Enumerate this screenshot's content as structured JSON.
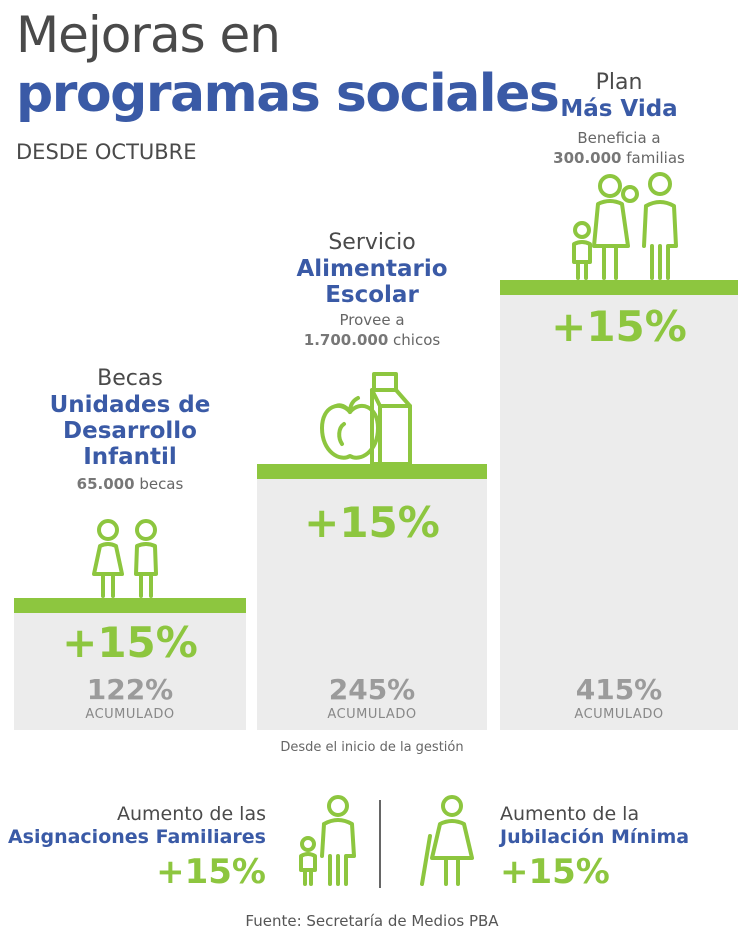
{
  "title": {
    "line1": "Mejoras en",
    "line2": "programas sociales",
    "since": "DESDE OCTUBRE"
  },
  "chart_data": {
    "type": "bar",
    "title": "Mejoras en programas sociales",
    "subtitle": "DESDE OCTUBRE",
    "categories": [
      "Becas Unidades de Desarrollo Infantil",
      "Servicio Alimentario Escolar",
      "Plan Más Vida"
    ],
    "series": [
      {
        "name": "",
        "values": [
          15,
          15,
          15
        ]
      },
      {
        "name": "ACUMULADO",
        "values": [
          122,
          245,
          415
        ]
      }
    ],
    "value_unit": "%",
    "footnote": "Desde el inicio de la gestión"
  },
  "programs": [
    {
      "pre": "Becas",
      "name_lines": [
        "Unidades de",
        "Desarrollo",
        "Infantil"
      ],
      "note_bold": "65.000",
      "note_text": " becas",
      "note_pre": "",
      "increase": "+15%",
      "accum": "122%",
      "accum_label": "ACUMULADO"
    },
    {
      "pre": "Servicio",
      "name_lines": [
        "Alimentario",
        "Escolar"
      ],
      "note_pre": "Provee a",
      "note_bold": "1.700.000",
      "note_text": " chicos",
      "increase": "+15%",
      "accum": "245%",
      "accum_label": "ACUMULADO"
    },
    {
      "pre": "Plan",
      "name_lines": [
        "Más Vida"
      ],
      "note_pre": "Beneficia a",
      "note_bold": "300.000",
      "note_text": " familias",
      "increase": "+15%",
      "accum": "415%",
      "accum_label": "ACUMULADO"
    }
  ],
  "footnote": "Desde el inicio de la gestión",
  "bottom": {
    "left": {
      "pre": "Aumento de las",
      "name": "Asignaciones Familiares",
      "pct": "+15%"
    },
    "right": {
      "pre": "Aumento de la",
      "name": "Jubilación Mínima",
      "pct": "+15%"
    }
  },
  "source": "Fuente: Secretaría de Medios PBA",
  "colors": {
    "green": "#8dc63f",
    "blue": "#3a5aa6",
    "gray": "#ececec"
  }
}
